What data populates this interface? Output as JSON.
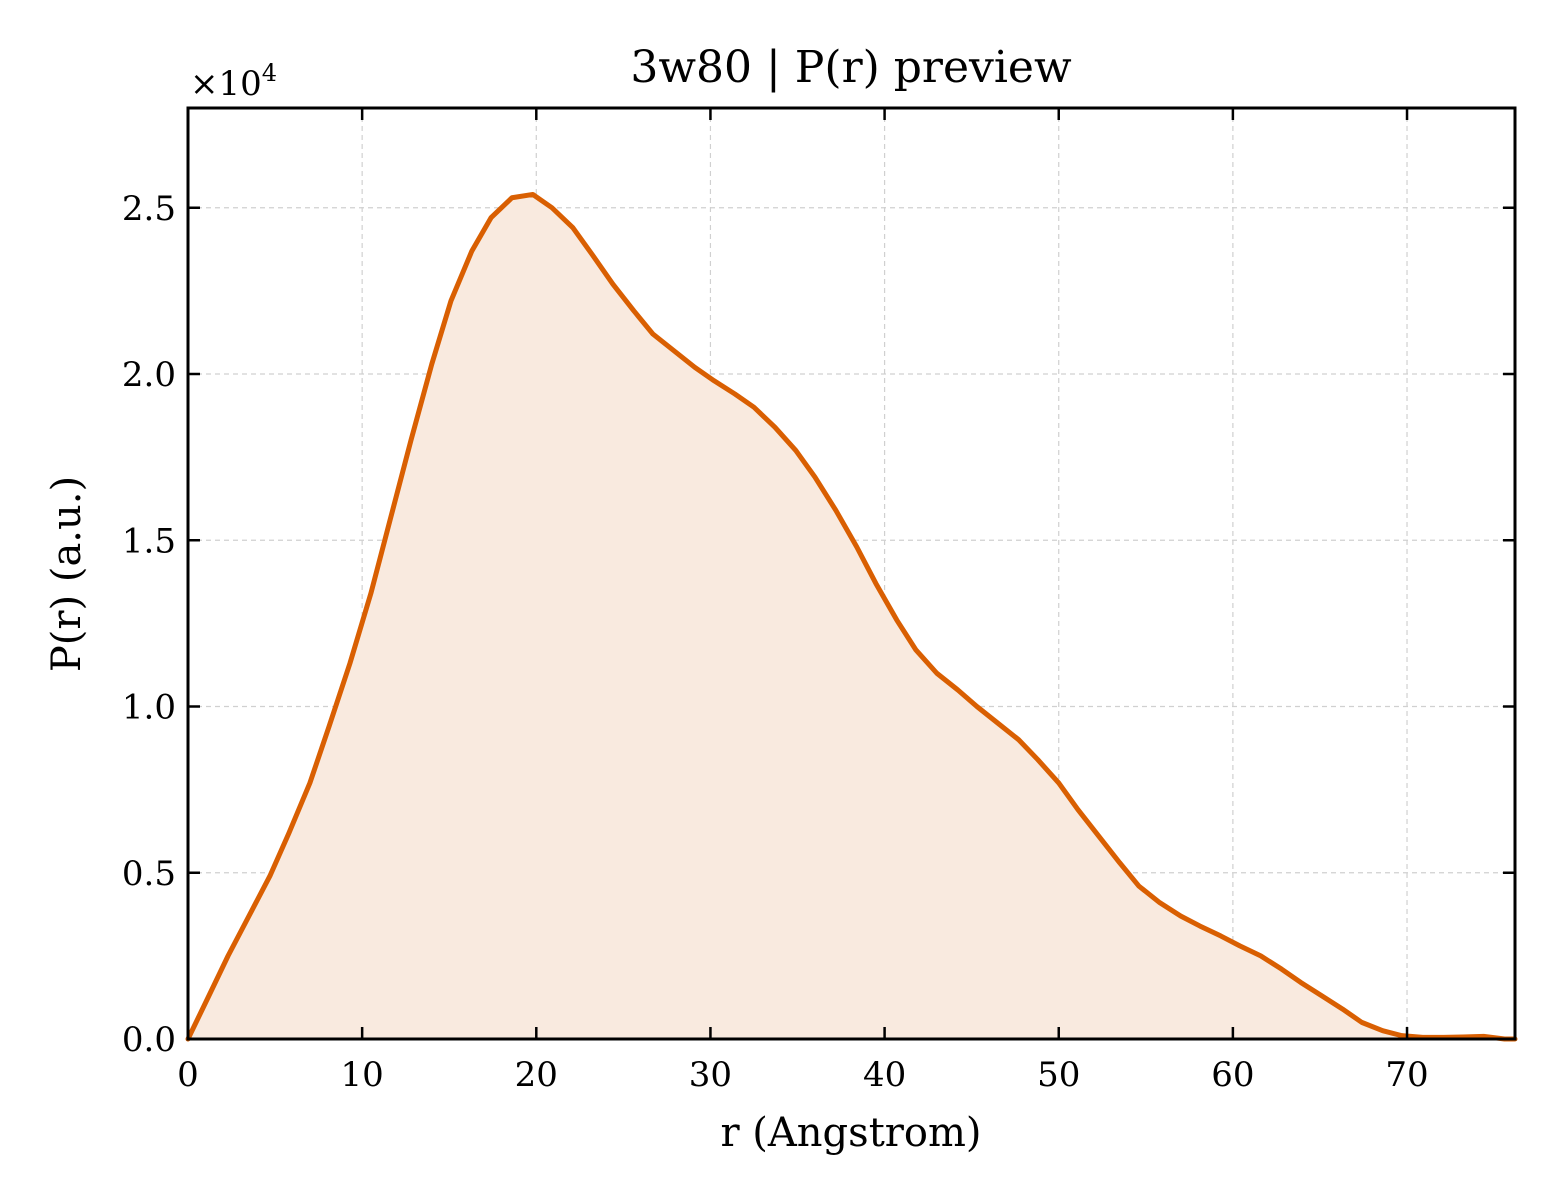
{
  "chart_data": {
    "type": "area",
    "title": "3w80 | P(r) preview",
    "xlabel": "r (Angstrom)",
    "ylabel": "P(r) (a.u.)",
    "y_multiplier_base": "×10",
    "y_multiplier_exp": "4",
    "xlim": [
      0,
      76.2
    ],
    "ylim": [
      0,
      2.8
    ],
    "xticks": [
      0,
      10,
      20,
      30,
      40,
      50,
      60,
      70
    ],
    "yticks": [
      0.0,
      0.5,
      1.0,
      1.5,
      2.0,
      2.5
    ],
    "ytick_labels": [
      "0.0",
      "0.5",
      "1.0",
      "1.5",
      "2.0",
      "2.5"
    ],
    "grid": true,
    "line_color": "#d95f02",
    "fill_color": "#f9eadf",
    "series": [
      {
        "x": [
          0,
          1.2,
          2.3,
          3.5,
          4.7,
          5.8,
          7.0,
          8.1,
          9.3,
          10.5,
          11.6,
          12.8,
          14.0,
          15.1,
          16.3,
          17.4,
          18.6,
          19.8,
          20.9,
          22.1,
          23.2,
          24.4,
          25.6,
          26.7,
          27.9,
          29.1,
          30.2,
          31.4,
          32.5,
          33.7,
          34.9,
          36.0,
          37.2,
          38.4,
          39.5,
          40.7,
          41.8,
          43.0,
          44.2,
          45.3,
          46.5,
          47.7,
          48.8,
          50.0,
          51.1,
          52.3,
          53.5,
          54.6,
          55.8,
          57.0,
          58.1,
          59.3,
          60.4,
          61.6,
          62.8,
          63.9,
          65.1,
          66.3,
          67.4,
          68.6,
          69.7,
          70.9,
          72.1,
          73.2,
          74.4,
          75.6,
          76.2
        ],
        "y": [
          0.0,
          0.13,
          0.25,
          0.37,
          0.49,
          0.62,
          0.77,
          0.94,
          1.13,
          1.34,
          1.56,
          1.8,
          2.03,
          2.22,
          2.37,
          2.47,
          2.53,
          2.54,
          2.5,
          2.44,
          2.36,
          2.27,
          2.19,
          2.12,
          2.07,
          2.02,
          1.98,
          1.94,
          1.9,
          1.84,
          1.77,
          1.69,
          1.59,
          1.48,
          1.37,
          1.26,
          1.17,
          1.1,
          1.05,
          1.0,
          0.95,
          0.9,
          0.84,
          0.77,
          0.69,
          0.61,
          0.53,
          0.46,
          0.41,
          0.37,
          0.34,
          0.31,
          0.28,
          0.25,
          0.21,
          0.17,
          0.13,
          0.09,
          0.05,
          0.025,
          0.01,
          0.005,
          0.005,
          0.006,
          0.008,
          0.0,
          0.0
        ]
      }
    ]
  }
}
